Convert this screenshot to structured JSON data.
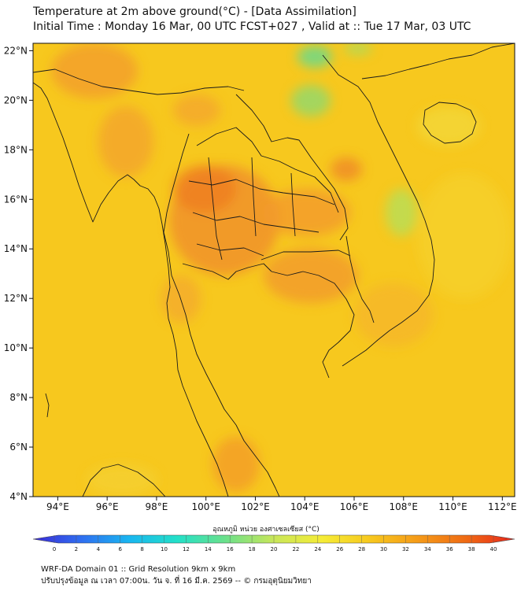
{
  "header": {
    "title": "Temperature at 2m above ground(°C) - [Data Assimilation]",
    "subtitle": "Initial Time : Monday 16 Mar, 00 UTC FCST+027 , Valid at :: Tue 17 Mar, 03 UTC"
  },
  "map": {
    "lon_range": [
      93,
      112.5
    ],
    "lat_range": [
      4,
      22.3
    ],
    "lon_ticks": [
      "94°E",
      "96°E",
      "98°E",
      "100°E",
      "102°E",
      "104°E",
      "106°E",
      "108°E",
      "110°E",
      "112°E"
    ],
    "lat_ticks": [
      "4°N",
      "6°N",
      "8°N",
      "10°N",
      "12°N",
      "14°N",
      "16°N",
      "18°N",
      "20°N",
      "22°N"
    ],
    "background_color": "#f7c81e",
    "border_color": "#1a1a1a"
  },
  "colorbar": {
    "title": "อุณหภูมิ หน่วย องศาเซลเซียส (°C)",
    "min": 0,
    "max": 40,
    "tick_labels": [
      "0",
      "2",
      "4",
      "6",
      "8",
      "10",
      "12",
      "14",
      "16",
      "18",
      "20",
      "22",
      "24",
      "26",
      "28",
      "30",
      "32",
      "34",
      "36",
      "38",
      "40"
    ],
    "stops": [
      "#3b2bd6",
      "#2f6ef0",
      "#19b6f0",
      "#23e0c8",
      "#6be08a",
      "#c8e65a",
      "#f5ec36",
      "#f7c81e",
      "#f59a18",
      "#ef6a14",
      "#e8261c"
    ]
  },
  "footer": {
    "line1": "WRF-DA Domain 01 :: Grid Resolution 9km x 9km",
    "line2": "ปรับปรุงข้อมูล ณ เวลา 07:00น. วัน จ. ที่ 16 มี.ค. 2569 -- © กรมอุตุนิยมวิทยา"
  }
}
